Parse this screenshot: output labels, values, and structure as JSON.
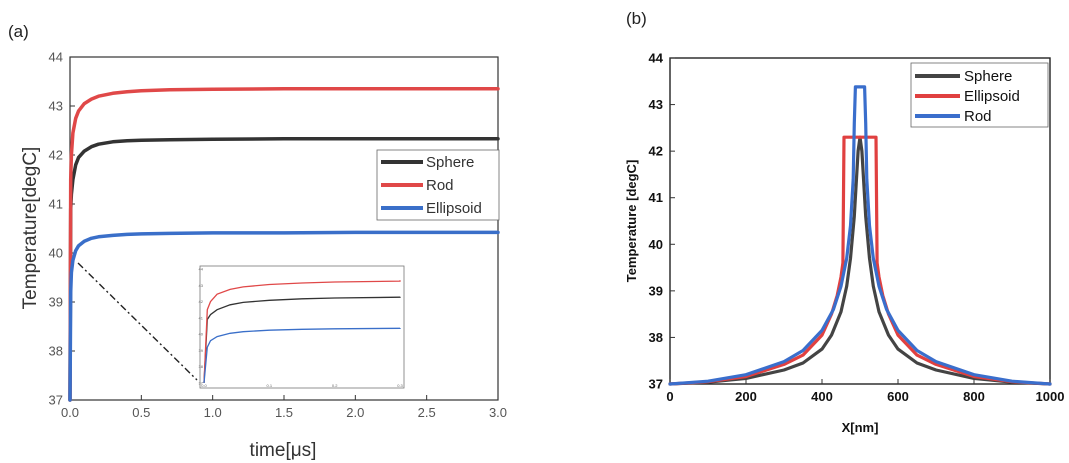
{
  "chart_data": [
    {
      "panel": "(a)",
      "type": "line",
      "title": "",
      "xlabel": "time[μs]",
      "ylabel": "Temperature[degC]",
      "xlim": [
        0,
        3.0
      ],
      "ylim": [
        37,
        44
      ],
      "xticks": [
        "0.0",
        "0.5",
        "1.0",
        "1.5",
        "2.0",
        "2.5",
        "3.0"
      ],
      "yticks": [
        "37",
        "38",
        "39",
        "40",
        "41",
        "42",
        "43",
        "44"
      ],
      "legend": "right",
      "grid": false,
      "series": [
        {
          "name": "Sphere",
          "color": "#333333",
          "x": [
            0,
            0.005,
            0.01,
            0.02,
            0.04,
            0.06,
            0.1,
            0.15,
            0.2,
            0.3,
            0.4,
            0.5,
            0.7,
            1.0,
            1.5,
            2.0,
            2.5,
            3.0
          ],
          "y": [
            37.0,
            40.9,
            41.2,
            41.5,
            41.8,
            41.95,
            42.08,
            42.17,
            42.22,
            42.27,
            42.29,
            42.3,
            42.31,
            42.32,
            42.33,
            42.33,
            42.33,
            42.33
          ]
        },
        {
          "name": "Rod",
          "color": "#e04848",
          "x": [
            0,
            0.005,
            0.01,
            0.02,
            0.04,
            0.06,
            0.1,
            0.15,
            0.2,
            0.3,
            0.4,
            0.5,
            0.7,
            1.0,
            1.5,
            2.0,
            2.5,
            3.0
          ],
          "y": [
            37.0,
            41.5,
            42.0,
            42.45,
            42.75,
            42.9,
            43.05,
            43.14,
            43.2,
            43.26,
            43.29,
            43.31,
            43.33,
            43.34,
            43.35,
            43.35,
            43.35,
            43.35
          ]
        },
        {
          "name": "Ellipsoid",
          "color": "#3a6fc9",
          "x": [
            0,
            0.005,
            0.01,
            0.02,
            0.04,
            0.06,
            0.1,
            0.15,
            0.2,
            0.3,
            0.4,
            0.5,
            0.7,
            1.0,
            1.5,
            2.0,
            2.5,
            3.0
          ],
          "y": [
            37.0,
            39.2,
            39.6,
            39.85,
            40.05,
            40.15,
            40.24,
            40.3,
            40.33,
            40.36,
            40.38,
            40.39,
            40.4,
            40.41,
            40.41,
            40.42,
            40.42,
            40.42
          ]
        }
      ],
      "inset": {
        "xticks": [
          "0.0",
          "0.1",
          "0.2",
          "0.3"
        ],
        "yticks": [
          "37",
          "38",
          "39",
          "40",
          "41",
          "42",
          "43",
          "44"
        ],
        "xlim": [
          0,
          0.3
        ],
        "ylim": [
          37,
          44
        ]
      }
    },
    {
      "panel": "(b)",
      "type": "line",
      "title": "",
      "xlabel": "X[nm]",
      "ylabel": "Temperature [degC]",
      "xlim": [
        0,
        1000
      ],
      "ylim": [
        37,
        44
      ],
      "xticks": [
        "0",
        "200",
        "400",
        "600",
        "800",
        "1000"
      ],
      "yticks": [
        "37",
        "38",
        "39",
        "40",
        "41",
        "42",
        "43",
        "44"
      ],
      "legend": "top-right",
      "grid": false,
      "series": [
        {
          "name": "Sphere",
          "color": "#444444",
          "x": [
            0,
            100,
            200,
            300,
            350,
            400,
            425,
            450,
            465,
            475,
            485,
            490,
            495,
            500,
            505,
            510,
            515,
            525,
            535,
            550,
            575,
            600,
            650,
            700,
            800,
            900,
            1000
          ],
          "y": [
            37.0,
            37.04,
            37.12,
            37.3,
            37.45,
            37.75,
            38.05,
            38.55,
            39.1,
            39.7,
            40.6,
            41.3,
            42.0,
            42.3,
            42.0,
            41.3,
            40.6,
            39.7,
            39.1,
            38.55,
            38.05,
            37.75,
            37.45,
            37.3,
            37.12,
            37.04,
            37.0
          ]
        },
        {
          "name": "Ellipsoid",
          "color": "#e04040",
          "x": [
            0,
            100,
            200,
            300,
            350,
            400,
            425,
            440,
            450,
            455,
            458,
            542,
            545,
            550,
            560,
            575,
            600,
            650,
            700,
            800,
            900,
            1000
          ],
          "y": [
            37.0,
            37.05,
            37.16,
            37.42,
            37.62,
            38.05,
            38.5,
            38.9,
            39.3,
            39.6,
            42.3,
            42.3,
            39.6,
            39.3,
            38.9,
            38.5,
            38.05,
            37.62,
            37.42,
            37.16,
            37.05,
            37.0
          ]
        },
        {
          "name": "Rod",
          "color": "#3a6ecc",
          "x": [
            0,
            100,
            200,
            300,
            350,
            400,
            430,
            450,
            465,
            475,
            482,
            485,
            488,
            512,
            515,
            518,
            525,
            535,
            550,
            570,
            600,
            650,
            700,
            800,
            900,
            1000
          ],
          "y": [
            37.0,
            37.06,
            37.2,
            37.48,
            37.72,
            38.15,
            38.6,
            39.1,
            39.7,
            40.4,
            41.4,
            42.6,
            43.38,
            43.38,
            42.6,
            41.4,
            40.4,
            39.7,
            39.1,
            38.6,
            38.15,
            37.72,
            37.48,
            37.2,
            37.06,
            37.0
          ]
        }
      ]
    }
  ]
}
